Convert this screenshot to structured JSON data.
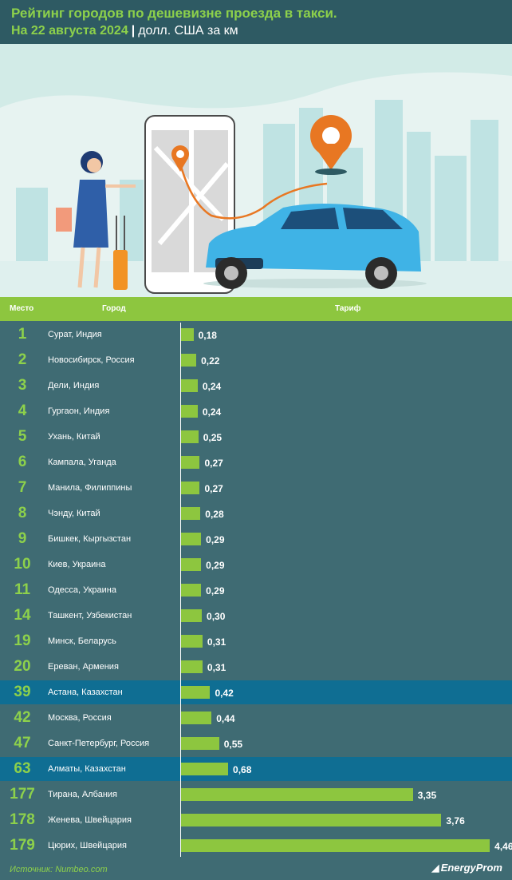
{
  "header": {
    "title": "Рейтинг городов по дешевизне проезда в такси.",
    "date": "На 22 августа 2024",
    "separator": "|",
    "unit": "долл. США за км"
  },
  "columns": {
    "rank": "Место",
    "city": "Город",
    "tariff": "Тариф"
  },
  "chart_data": {
    "type": "bar",
    "orientation": "horizontal",
    "categories": [
      "Сурат, Индия",
      "Новосибирск, Россия",
      "Дели, Индия",
      "Гургаон, Индия",
      "Ухань, Китай",
      "Кампала, Уганда",
      "Манила, Филиппины",
      "Чэнду, Китай",
      "Бишкек, Кыргызстан",
      "Киев, Украина",
      "Одесса, Украина",
      "Ташкент, Узбекистан",
      "Минск, Беларусь",
      "Ереван, Армения",
      "Астана, Казахстан",
      "Москва, Россия",
      "Санкт-Петербург, Россия",
      "Алматы, Казахстан",
      "Тирана, Албания",
      "Женева, Швейцария",
      "Цюрих, Швейцария"
    ],
    "ranks": [
      "1",
      "2",
      "3",
      "4",
      "5",
      "6",
      "7",
      "8",
      "9",
      "10",
      "11",
      "14",
      "19",
      "20",
      "39",
      "42",
      "47",
      "63",
      "177",
      "178",
      "179"
    ],
    "values": [
      0.18,
      0.22,
      0.24,
      0.24,
      0.25,
      0.27,
      0.27,
      0.28,
      0.29,
      0.29,
      0.29,
      0.3,
      0.31,
      0.31,
      0.42,
      0.44,
      0.55,
      0.68,
      3.35,
      3.76,
      4.46
    ],
    "labels": [
      "0,18",
      "0,22",
      "0,24",
      "0,24",
      "0,25",
      "0,27",
      "0,27",
      "0,28",
      "0,29",
      "0,29",
      "0,29",
      "0,30",
      "0,31",
      "0,31",
      "0,42",
      "0,44",
      "0,55",
      "0,68",
      "3,35",
      "3,76",
      "4,46"
    ],
    "highlighted": [
      "Астана, Казахстан",
      "Алматы, Казахстан"
    ],
    "xlim": [
      0,
      4.7
    ],
    "colors": {
      "bar": "#8dc63f",
      "row": "#3f6b73",
      "highlight_row": "#0f6e93",
      "accent": "#8dd14b"
    }
  },
  "footer": {
    "source": "Источник: Numbeo.com",
    "brand": "EnergyProm"
  }
}
